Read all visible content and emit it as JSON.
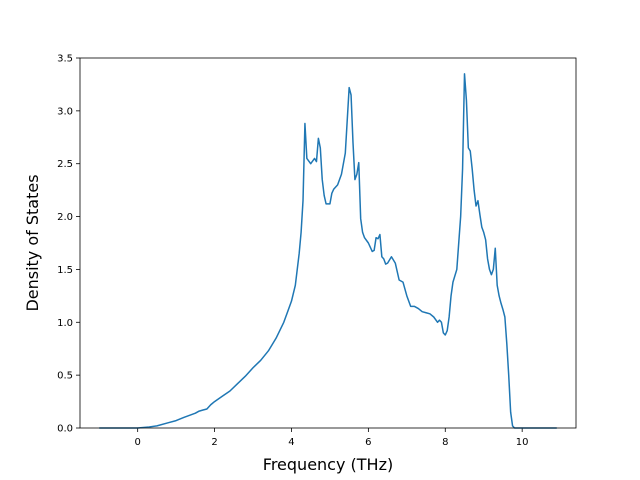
{
  "chart_data": {
    "type": "line",
    "title": "",
    "xlabel": "Frequency (THz)",
    "ylabel": "Density of States",
    "xlim": [
      -1.5,
      11.4
    ],
    "ylim": [
      0,
      3.5
    ],
    "xticks": [
      0,
      2,
      4,
      6,
      8,
      10
    ],
    "xtick_labels": [
      "0",
      "2",
      "4",
      "6",
      "8",
      "10"
    ],
    "yticks": [
      0.0,
      0.5,
      1.0,
      1.5,
      2.0,
      2.5,
      3.0,
      3.5
    ],
    "ytick_labels": [
      "0.0",
      "0.5",
      "1.0",
      "1.5",
      "2.0",
      "2.5",
      "3.0",
      "3.5"
    ],
    "grid": false,
    "line_color": "#1f77b4",
    "series": [
      {
        "x": [
          -1.0,
          -0.5,
          0.0,
          0.3,
          0.5,
          0.8,
          1.0,
          1.2,
          1.5,
          1.6,
          1.7,
          1.8,
          1.9,
          2.0,
          2.2,
          2.4,
          2.6,
          2.8,
          3.0,
          3.2,
          3.4,
          3.6,
          3.8,
          3.9,
          4.0,
          4.1,
          4.15,
          4.2,
          4.25,
          4.3,
          4.35,
          4.4,
          4.5,
          4.6,
          4.65,
          4.7,
          4.75,
          4.8,
          4.85,
          4.9,
          5.0,
          5.05,
          5.1,
          5.2,
          5.3,
          5.4,
          5.5,
          5.55,
          5.6,
          5.65,
          5.7,
          5.75,
          5.8,
          5.85,
          5.9,
          6.0,
          6.1,
          6.15,
          6.2,
          6.25,
          6.3,
          6.35,
          6.4,
          6.45,
          6.5,
          6.6,
          6.7,
          6.8,
          6.9,
          7.0,
          7.1,
          7.2,
          7.3,
          7.4,
          7.5,
          7.6,
          7.7,
          7.8,
          7.85,
          7.9,
          7.95,
          8.0,
          8.05,
          8.1,
          8.15,
          8.2,
          8.3,
          8.4,
          8.45,
          8.5,
          8.55,
          8.6,
          8.65,
          8.7,
          8.75,
          8.8,
          8.85,
          8.9,
          8.95,
          9.0,
          9.05,
          9.1,
          9.15,
          9.2,
          9.25,
          9.3,
          9.35,
          9.4,
          9.45,
          9.5,
          9.55,
          9.6,
          9.65,
          9.7,
          9.75,
          9.8,
          9.85,
          9.9,
          9.95,
          10.0,
          10.5,
          10.9
        ],
        "y": [
          0.0,
          0.0,
          0.0,
          0.01,
          0.02,
          0.05,
          0.07,
          0.1,
          0.14,
          0.16,
          0.17,
          0.18,
          0.22,
          0.25,
          0.3,
          0.35,
          0.42,
          0.49,
          0.57,
          0.64,
          0.73,
          0.85,
          1.0,
          1.1,
          1.2,
          1.35,
          1.5,
          1.65,
          1.85,
          2.15,
          2.88,
          2.55,
          2.5,
          2.55,
          2.52,
          2.74,
          2.65,
          2.35,
          2.2,
          2.12,
          2.12,
          2.22,
          2.26,
          2.3,
          2.4,
          2.6,
          3.22,
          3.15,
          2.7,
          2.35,
          2.4,
          2.51,
          1.98,
          1.85,
          1.8,
          1.75,
          1.67,
          1.68,
          1.8,
          1.79,
          1.83,
          1.62,
          1.6,
          1.55,
          1.56,
          1.62,
          1.56,
          1.4,
          1.38,
          1.25,
          1.15,
          1.15,
          1.13,
          1.1,
          1.09,
          1.08,
          1.05,
          1.0,
          1.02,
          1.0,
          0.9,
          0.88,
          0.92,
          1.05,
          1.25,
          1.38,
          1.5,
          2.0,
          2.45,
          3.35,
          3.1,
          2.65,
          2.62,
          2.45,
          2.25,
          2.1,
          2.15,
          2.02,
          1.9,
          1.85,
          1.78,
          1.6,
          1.5,
          1.45,
          1.5,
          1.7,
          1.35,
          1.25,
          1.18,
          1.12,
          1.05,
          0.8,
          0.5,
          0.15,
          0.02,
          0.0,
          0.0,
          0.0,
          0.0,
          0.0,
          0.0,
          0.0
        ]
      }
    ]
  }
}
